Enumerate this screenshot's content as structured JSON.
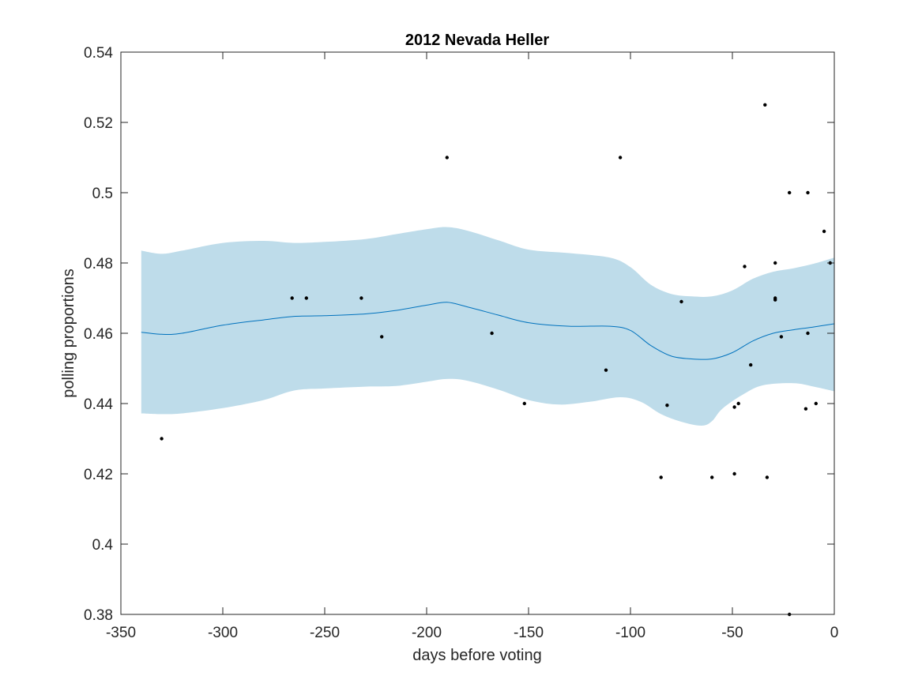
{
  "chart_data": {
    "type": "scatter",
    "title": "2012 Nevada Heller",
    "xlabel": "days before voting",
    "ylabel": "polling proportions",
    "xlim": [
      -350,
      0
    ],
    "ylim": [
      0.38,
      0.54
    ],
    "xticks": [
      -350,
      -300,
      -250,
      -200,
      -150,
      -100,
      -50,
      0
    ],
    "yticks": [
      0.38,
      0.4,
      0.42,
      0.44,
      0.46,
      0.48,
      0.5,
      0.52,
      0.54
    ],
    "xtick_labels": [
      "-350",
      "-300",
      "-250",
      "-200",
      "-150",
      "-100",
      "-50",
      "0"
    ],
    "ytick_labels": [
      "0.38",
      "0.4",
      "0.42",
      "0.44",
      "0.46",
      "0.48",
      "0.5",
      "0.52",
      "0.54"
    ],
    "grid": false,
    "colors": {
      "band": "#bedcea",
      "trend": "#0072bd",
      "points": "#000000",
      "axes": "#262626"
    },
    "points": [
      {
        "x": -330,
        "y": 0.43
      },
      {
        "x": -266,
        "y": 0.47
      },
      {
        "x": -259,
        "y": 0.47
      },
      {
        "x": -232,
        "y": 0.47
      },
      {
        "x": -222,
        "y": 0.459
      },
      {
        "x": -190,
        "y": 0.51
      },
      {
        "x": -168,
        "y": 0.46
      },
      {
        "x": -152,
        "y": 0.44
      },
      {
        "x": -112,
        "y": 0.4495
      },
      {
        "x": -105,
        "y": 0.51
      },
      {
        "x": -85,
        "y": 0.419
      },
      {
        "x": -82,
        "y": 0.4395
      },
      {
        "x": -75,
        "y": 0.469
      },
      {
        "x": -60,
        "y": 0.419
      },
      {
        "x": -49,
        "y": 0.42
      },
      {
        "x": -49,
        "y": 0.439
      },
      {
        "x": -47,
        "y": 0.44
      },
      {
        "x": -44,
        "y": 0.479
      },
      {
        "x": -41,
        "y": 0.451
      },
      {
        "x": -34,
        "y": 0.525
      },
      {
        "x": -33,
        "y": 0.419
      },
      {
        "x": -29,
        "y": 0.48
      },
      {
        "x": -29,
        "y": 0.47
      },
      {
        "x": -29,
        "y": 0.4695
      },
      {
        "x": -26,
        "y": 0.459
      },
      {
        "x": -22,
        "y": 0.5
      },
      {
        "x": -22,
        "y": 0.38
      },
      {
        "x": -14,
        "y": 0.4385
      },
      {
        "x": -13,
        "y": 0.46
      },
      {
        "x": -13,
        "y": 0.5
      },
      {
        "x": -9,
        "y": 0.44
      },
      {
        "x": -5,
        "y": 0.489
      },
      {
        "x": -2,
        "y": 0.48
      }
    ],
    "trend": [
      {
        "x": -340,
        "y": 0.4603
      },
      {
        "x": -330,
        "y": 0.4597
      },
      {
        "x": -320,
        "y": 0.46
      },
      {
        "x": -300,
        "y": 0.4623
      },
      {
        "x": -280,
        "y": 0.4638
      },
      {
        "x": -265,
        "y": 0.4648
      },
      {
        "x": -250,
        "y": 0.465
      },
      {
        "x": -230,
        "y": 0.4655
      },
      {
        "x": -215,
        "y": 0.4665
      },
      {
        "x": -200,
        "y": 0.468
      },
      {
        "x": -190,
        "y": 0.4688
      },
      {
        "x": -180,
        "y": 0.4675
      },
      {
        "x": -165,
        "y": 0.4652
      },
      {
        "x": -150,
        "y": 0.463
      },
      {
        "x": -130,
        "y": 0.462
      },
      {
        "x": -110,
        "y": 0.462
      },
      {
        "x": -100,
        "y": 0.4608
      },
      {
        "x": -90,
        "y": 0.4565
      },
      {
        "x": -80,
        "y": 0.4535
      },
      {
        "x": -70,
        "y": 0.4527
      },
      {
        "x": -60,
        "y": 0.4527
      },
      {
        "x": -50,
        "y": 0.4545
      },
      {
        "x": -40,
        "y": 0.4578
      },
      {
        "x": -30,
        "y": 0.46
      },
      {
        "x": -20,
        "y": 0.461
      },
      {
        "x": -10,
        "y": 0.4618
      },
      {
        "x": 0,
        "y": 0.4627
      }
    ],
    "upper": [
      {
        "x": -340,
        "y": 0.4835
      },
      {
        "x": -330,
        "y": 0.4826
      },
      {
        "x": -320,
        "y": 0.4835
      },
      {
        "x": -300,
        "y": 0.4857
      },
      {
        "x": -280,
        "y": 0.4863
      },
      {
        "x": -265,
        "y": 0.4857
      },
      {
        "x": -250,
        "y": 0.486
      },
      {
        "x": -230,
        "y": 0.4868
      },
      {
        "x": -215,
        "y": 0.4882
      },
      {
        "x": -200,
        "y": 0.4896
      },
      {
        "x": -190,
        "y": 0.4902
      },
      {
        "x": -180,
        "y": 0.4892
      },
      {
        "x": -165,
        "y": 0.4865
      },
      {
        "x": -150,
        "y": 0.4838
      },
      {
        "x": -130,
        "y": 0.4828
      },
      {
        "x": -110,
        "y": 0.4815
      },
      {
        "x": -100,
        "y": 0.4788
      },
      {
        "x": -90,
        "y": 0.4738
      },
      {
        "x": -80,
        "y": 0.4712
      },
      {
        "x": -70,
        "y": 0.4705
      },
      {
        "x": -60,
        "y": 0.4705
      },
      {
        "x": -50,
        "y": 0.4722
      },
      {
        "x": -40,
        "y": 0.4755
      },
      {
        "x": -30,
        "y": 0.4775
      },
      {
        "x": -20,
        "y": 0.4785
      },
      {
        "x": -10,
        "y": 0.4798
      },
      {
        "x": 0,
        "y": 0.4815
      }
    ],
    "lower": [
      {
        "x": -340,
        "y": 0.4372
      },
      {
        "x": -330,
        "y": 0.437
      },
      {
        "x": -320,
        "y": 0.4372
      },
      {
        "x": -300,
        "y": 0.4387
      },
      {
        "x": -280,
        "y": 0.441
      },
      {
        "x": -265,
        "y": 0.4437
      },
      {
        "x": -250,
        "y": 0.4443
      },
      {
        "x": -230,
        "y": 0.4448
      },
      {
        "x": -215,
        "y": 0.445
      },
      {
        "x": -200,
        "y": 0.4462
      },
      {
        "x": -190,
        "y": 0.447
      },
      {
        "x": -180,
        "y": 0.4465
      },
      {
        "x": -165,
        "y": 0.444
      },
      {
        "x": -150,
        "y": 0.441
      },
      {
        "x": -135,
        "y": 0.4397
      },
      {
        "x": -120,
        "y": 0.4405
      },
      {
        "x": -105,
        "y": 0.4418
      },
      {
        "x": -95,
        "y": 0.4405
      },
      {
        "x": -85,
        "y": 0.437
      },
      {
        "x": -75,
        "y": 0.4348
      },
      {
        "x": -65,
        "y": 0.4337
      },
      {
        "x": -60,
        "y": 0.435
      },
      {
        "x": -55,
        "y": 0.4385
      },
      {
        "x": -45,
        "y": 0.4425
      },
      {
        "x": -35,
        "y": 0.4452
      },
      {
        "x": -20,
        "y": 0.4458
      },
      {
        "x": -10,
        "y": 0.4448
      },
      {
        "x": 0,
        "y": 0.4435
      }
    ]
  }
}
